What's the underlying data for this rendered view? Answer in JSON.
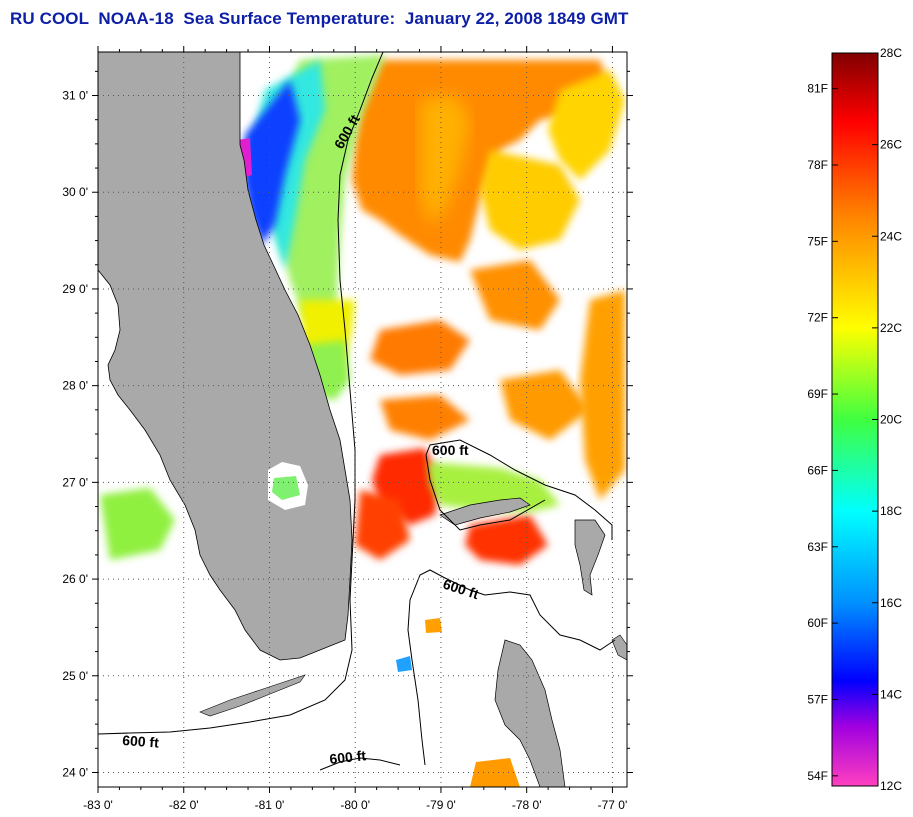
{
  "title": "RU COOL  NOAA-18  Sea Surface Temperature:  January 22, 2008 1849 GMT",
  "map": {
    "lon_range": [
      -83,
      -76.83
    ],
    "lat_range": [
      23.85,
      31.45
    ],
    "lon_ticks": [
      {
        "value": -83,
        "label": "-83 0'"
      },
      {
        "value": -82,
        "label": "-82 0'"
      },
      {
        "value": -81,
        "label": "-81 0'"
      },
      {
        "value": -80,
        "label": "-80 0'"
      },
      {
        "value": -79,
        "label": "-79 0'"
      },
      {
        "value": -78,
        "label": "-78 0'"
      },
      {
        "value": -77,
        "label": "-77 0'"
      }
    ],
    "lat_ticks": [
      {
        "value": 31,
        "label": "31 0'"
      },
      {
        "value": 30,
        "label": "30 0'"
      },
      {
        "value": 29,
        "label": "29 0'"
      },
      {
        "value": 28,
        "label": "28 0'"
      },
      {
        "value": 27,
        "label": "27 0'"
      },
      {
        "value": 26,
        "label": "26 0'"
      },
      {
        "value": 25,
        "label": "25 0'"
      },
      {
        "value": 24,
        "label": "24 0'"
      }
    ],
    "contour_labels": [
      "600 ft",
      "600 ft",
      "600 ft",
      "600 ft",
      "600 ft"
    ],
    "colors": {
      "land": "#a9a9a9",
      "no_data": "#ffffff",
      "coastline": "#000000"
    }
  },
  "colorbar": {
    "celsius_range": [
      12,
      28
    ],
    "celsius_labels": [
      "28C",
      "26C",
      "24C",
      "22C",
      "20C",
      "18C",
      "16C",
      "14C",
      "12C"
    ],
    "celsius_values": [
      28,
      26,
      24,
      22,
      20,
      18,
      16,
      14,
      12
    ],
    "fahrenheit_labels": [
      "81F",
      "78F",
      "75F",
      "72F",
      "69F",
      "66F",
      "63F",
      "60F",
      "57F",
      "54F"
    ],
    "fahrenheit_values": [
      81,
      78,
      75,
      72,
      69,
      66,
      63,
      60,
      57,
      54
    ],
    "stops": [
      {
        "c": 28,
        "color": "#800000"
      },
      {
        "c": 26.5,
        "color": "#ff0000"
      },
      {
        "c": 24.5,
        "color": "#ff8000"
      },
      {
        "c": 22,
        "color": "#ffff00"
      },
      {
        "c": 20,
        "color": "#40ff40"
      },
      {
        "c": 18,
        "color": "#00ffff"
      },
      {
        "c": 16,
        "color": "#0090ff"
      },
      {
        "c": 14.3,
        "color": "#0000ff"
      },
      {
        "c": 13.3,
        "color": "#a000e0"
      },
      {
        "c": 12,
        "color": "#ff40c0"
      }
    ]
  }
}
